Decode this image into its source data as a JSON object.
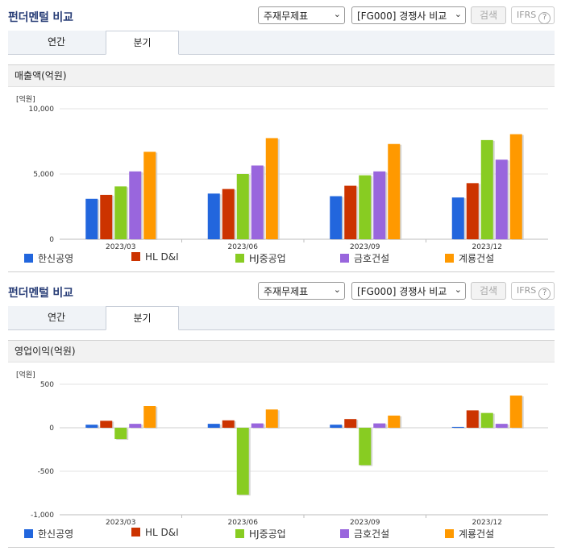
{
  "panels": [
    {
      "title": "펀더멘털 비교",
      "select1": "주재무제표",
      "select2": "[FG000] 경쟁사 비교",
      "search_label": "검색",
      "ifrs_label": "IFRS",
      "ifrs_help": "?",
      "tabs": [
        {
          "label": "연간"
        },
        {
          "label": "분기"
        }
      ],
      "active_tab": 1,
      "subtitle": "매출액(억원)",
      "unit": "[억원]"
    },
    {
      "title": "펀더멘털 비교",
      "select1": "주재무제표",
      "select2": "[FG000] 경쟁사 비교",
      "search_label": "검색",
      "ifrs_label": "IFRS",
      "ifrs_help": "?",
      "tabs": [
        {
          "label": "연간"
        },
        {
          "label": "분기"
        }
      ],
      "active_tab": 1,
      "subtitle": "영업이익(억원)",
      "unit": "[억원]"
    }
  ],
  "legend": [
    {
      "name": "한신공영",
      "color": "#2266dd"
    },
    {
      "name": "HL D&I",
      "color": "#cc3300"
    },
    {
      "name": "HJ중공업",
      "color": "#88cc22"
    },
    {
      "name": "금호건설",
      "color": "#9966dd"
    },
    {
      "name": "계룡건설",
      "color": "#ff9900"
    }
  ],
  "chart_data": [
    {
      "type": "bar",
      "title": "매출액(억원)",
      "ylabel": "[억원]",
      "categories": [
        "2023/03",
        "2023/06",
        "2023/09",
        "2023/12"
      ],
      "ylim": [
        0,
        10000
      ],
      "yticks": [
        0,
        5000,
        10000
      ],
      "ytick_labels": [
        "0",
        "5,000",
        "10,000"
      ],
      "grid": true,
      "legend_position": "bottom",
      "series": [
        {
          "name": "한신공영",
          "color": "#2266dd",
          "values": [
            3100,
            3500,
            3300,
            3200
          ]
        },
        {
          "name": "HL D&I",
          "color": "#cc3300",
          "values": [
            3400,
            3850,
            4100,
            4300
          ]
        },
        {
          "name": "HJ중공업",
          "color": "#88cc22",
          "values": [
            4050,
            5000,
            4900,
            7600
          ]
        },
        {
          "name": "금호건설",
          "color": "#9966dd",
          "values": [
            5200,
            5650,
            5200,
            6100
          ]
        },
        {
          "name": "계룡건설",
          "color": "#ff9900",
          "values": [
            6700,
            7750,
            7300,
            8050
          ]
        }
      ]
    },
    {
      "type": "bar",
      "title": "영업이익(억원)",
      "ylabel": "[억원]",
      "categories": [
        "2023/03",
        "2023/06",
        "2023/09",
        "2023/12"
      ],
      "ylim": [
        -1000,
        500
      ],
      "yticks": [
        -1000,
        -500,
        0,
        500
      ],
      "ytick_labels": [
        "-1,000",
        "-500",
        "0",
        "500"
      ],
      "grid": true,
      "legend_position": "bottom",
      "series": [
        {
          "name": "한신공영",
          "color": "#2266dd",
          "values": [
            35,
            45,
            35,
            10
          ]
        },
        {
          "name": "HL D&I",
          "color": "#cc3300",
          "values": [
            80,
            85,
            100,
            200
          ]
        },
        {
          "name": "HJ중공업",
          "color": "#88cc22",
          "values": [
            -130,
            -770,
            -430,
            170
          ]
        },
        {
          "name": "금호건설",
          "color": "#9966dd",
          "values": [
            45,
            50,
            50,
            45
          ]
        },
        {
          "name": "계룡건설",
          "color": "#ff9900",
          "values": [
            250,
            210,
            140,
            370
          ]
        }
      ]
    }
  ]
}
